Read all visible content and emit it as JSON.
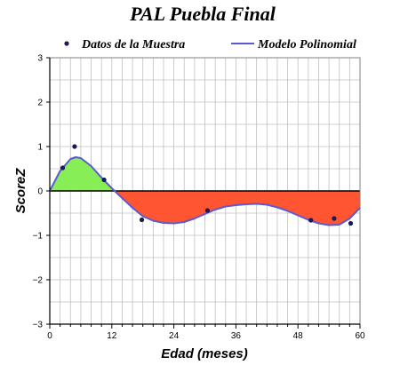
{
  "chart_data": {
    "type": "line",
    "title": "PAL Puebla Final",
    "xlabel": "Edad (meses)",
    "ylabel": "ScoreZ",
    "xlim": [
      0,
      60
    ],
    "ylim": [
      -3,
      3
    ],
    "xticks": [
      0,
      12,
      24,
      36,
      48,
      60
    ],
    "yticks": [
      -3,
      -2,
      -1,
      0,
      1,
      2,
      3
    ],
    "grid": true,
    "legend": "top",
    "series": [
      {
        "name": "Datos de la Muestra",
        "kind": "scatter",
        "x": [
          2.5,
          4.8,
          10.5,
          17.8,
          30.5,
          50.5,
          55.0,
          58.2
        ],
        "y": [
          0.52,
          1.0,
          0.25,
          -0.65,
          -0.44,
          -0.66,
          -0.62,
          -0.73
        ]
      },
      {
        "name": "Modelo Polinomial",
        "kind": "line",
        "x": [
          0,
          2,
          4,
          5,
          6,
          8,
          10,
          12,
          13,
          14,
          16,
          18,
          20,
          22,
          24,
          26,
          28,
          30,
          32,
          34,
          36,
          38,
          40,
          42,
          44,
          46,
          48,
          50,
          52,
          54,
          56,
          58,
          60
        ],
        "y": [
          0.0,
          0.45,
          0.72,
          0.76,
          0.74,
          0.56,
          0.3,
          0.06,
          -0.05,
          -0.16,
          -0.38,
          -0.57,
          -0.67,
          -0.72,
          -0.73,
          -0.7,
          -0.62,
          -0.52,
          -0.42,
          -0.35,
          -0.32,
          -0.3,
          -0.29,
          -0.31,
          -0.37,
          -0.45,
          -0.55,
          -0.65,
          -0.73,
          -0.77,
          -0.76,
          -0.62,
          -0.38
        ]
      }
    ],
    "colors": {
      "points": "#1a1a55",
      "line": "#5a5ad2",
      "positive_fill": "#88ee55",
      "negative_fill": "#ff5533",
      "grid": "#c0c0c0",
      "zero_line": "#000000"
    }
  }
}
